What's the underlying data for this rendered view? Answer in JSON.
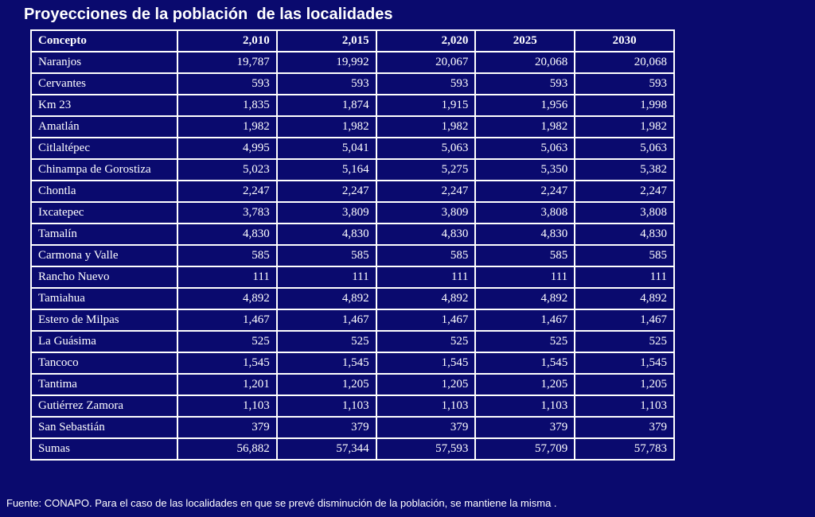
{
  "title": "Proyecciones de la población  de las localidades",
  "table": {
    "headers": [
      "Concepto",
      "2,010",
      "2,015",
      "2,020",
      "2025",
      "2030"
    ],
    "rows": [
      [
        "Naranjos",
        "19,787",
        "19,992",
        "20,067",
        "20,068",
        "20,068"
      ],
      [
        "Cervantes",
        "593",
        "593",
        "593",
        "593",
        "593"
      ],
      [
        "Km 23",
        "1,835",
        "1,874",
        "1,915",
        "1,956",
        "1,998"
      ],
      [
        "Amatlán",
        "1,982",
        "1,982",
        "1,982",
        "1,982",
        "1,982"
      ],
      [
        "Citlaltépec",
        "4,995",
        "5,041",
        "5,063",
        "5,063",
        "5,063"
      ],
      [
        "Chinampa de Gorostiza",
        "5,023",
        "5,164",
        "5,275",
        "5,350",
        "5,382"
      ],
      [
        "Chontla",
        "2,247",
        "2,247",
        "2,247",
        "2,247",
        "2,247"
      ],
      [
        "Ixcatepec",
        "3,783",
        "3,809",
        "3,809",
        "3,808",
        "3,808"
      ],
      [
        "Tamalín",
        "4,830",
        "4,830",
        "4,830",
        "4,830",
        "4,830"
      ],
      [
        "Carmona y Valle",
        "585",
        "585",
        "585",
        "585",
        "585"
      ],
      [
        "Rancho Nuevo",
        "111",
        "111",
        "111",
        "111",
        "111"
      ],
      [
        "Tamiahua",
        "4,892",
        "4,892",
        "4,892",
        "4,892",
        "4,892"
      ],
      [
        "Estero de Milpas",
        "1,467",
        "1,467",
        "1,467",
        "1,467",
        "1,467"
      ],
      [
        "La Guásima",
        "525",
        "525",
        "525",
        "525",
        "525"
      ],
      [
        "Tancoco",
        "1,545",
        "1,545",
        "1,545",
        "1,545",
        "1,545"
      ],
      [
        "Tantima",
        "1,201",
        "1,205",
        "1,205",
        "1,205",
        "1,205"
      ],
      [
        "Gutiérrez Zamora",
        "1,103",
        "1,103",
        "1,103",
        "1,103",
        "1,103"
      ],
      [
        "San Sebastián",
        "379",
        "379",
        "379",
        "379",
        "379"
      ],
      [
        "Sumas",
        "56,882",
        "57,344",
        "57,593",
        "57,709",
        "57,783"
      ]
    ]
  },
  "footer": "Fuente: CONAPO. Para el caso de las localidades en que se prevé disminución de la población, se mantiene la misma .",
  "colors": {
    "background": "#0a0a6e",
    "text": "#ffffff",
    "border": "#ffffff"
  }
}
